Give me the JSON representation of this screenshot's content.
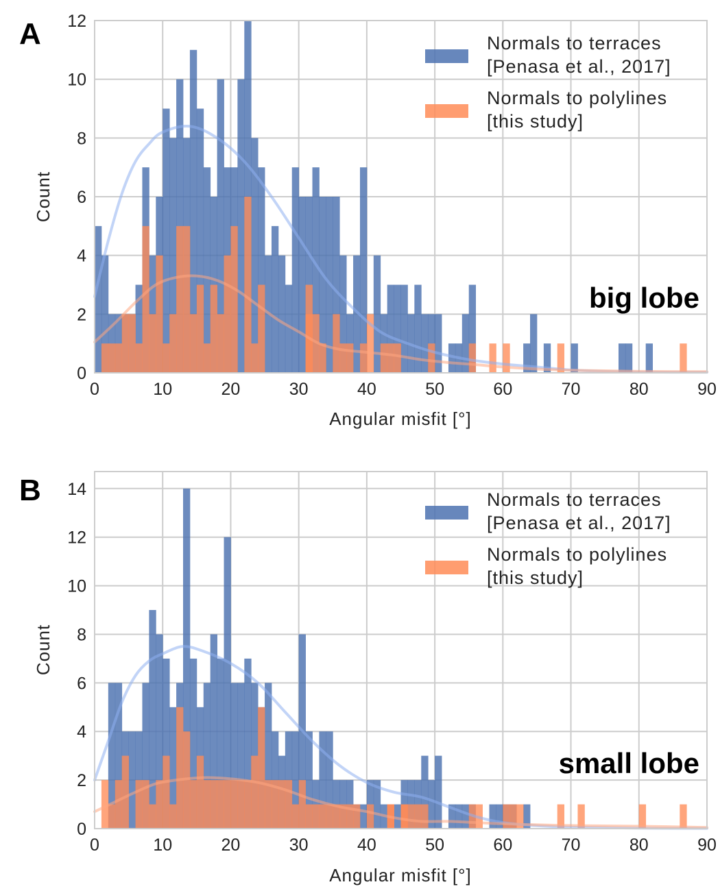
{
  "chart_data": [
    {
      "type": "bar",
      "panel": "A",
      "annotation": "big lobe",
      "xlabel": "Angular misfit [°]",
      "ylabel": "Count",
      "xlim": [
        0,
        90
      ],
      "ylim": [
        0,
        12
      ],
      "xticks": [
        0,
        10,
        20,
        30,
        40,
        50,
        60,
        70,
        80,
        90
      ],
      "yticks": [
        0,
        2,
        4,
        6,
        8,
        10,
        12
      ],
      "bin_width": 1,
      "grid": true,
      "legend_position": "top-right",
      "series": [
        {
          "name": "Normals to terraces [Penasa et al., 2017]",
          "legend_lines": [
            "Normals to terraces",
            "[Penasa et al., 2017]"
          ],
          "color": "#4c72b0",
          "kde_color": "#8fb0f0",
          "counts": [
            5,
            4,
            2,
            2,
            2,
            2,
            3,
            7,
            4,
            6,
            9,
            8,
            10,
            8,
            11,
            9,
            7,
            6,
            10,
            7,
            7,
            10,
            12,
            8,
            7,
            4,
            5,
            4,
            3,
            7,
            6,
            6,
            7,
            6,
            6,
            6,
            4,
            2,
            4,
            7,
            0,
            4,
            2,
            3,
            3,
            3,
            2,
            3,
            2,
            2,
            2,
            0,
            1,
            1,
            2,
            3,
            0,
            0,
            0,
            0,
            0,
            0,
            0,
            1,
            2,
            0,
            1,
            0,
            0,
            0,
            1,
            0,
            0,
            0,
            0,
            0,
            0,
            1,
            1,
            0,
            0,
            1,
            0,
            0,
            0,
            0,
            0,
            0,
            0,
            0
          ],
          "kde_points": [
            [
              0,
              2.6
            ],
            [
              2,
              4.5
            ],
            [
              4,
              6.1
            ],
            [
              6,
              7.2
            ],
            [
              8,
              7.8
            ],
            [
              10,
              8.2
            ],
            [
              14,
              8.4
            ],
            [
              18,
              8.0
            ],
            [
              22,
              7.2
            ],
            [
              26,
              6.0
            ],
            [
              30,
              4.6
            ],
            [
              34,
              3.2
            ],
            [
              38,
              2.2
            ],
            [
              42,
              1.4
            ],
            [
              46,
              1.0
            ],
            [
              50,
              0.7
            ],
            [
              55,
              0.45
            ],
            [
              60,
              0.3
            ],
            [
              65,
              0.2
            ],
            [
              70,
              0.1
            ],
            [
              75,
              0.05
            ],
            [
              80,
              0.03
            ],
            [
              85,
              0.02
            ],
            [
              90,
              0.02
            ]
          ]
        },
        {
          "name": "Normals to polylines [this study]",
          "legend_lines": [
            "Normals to polylines",
            "[this study]"
          ],
          "color": "#ff8c57",
          "kde_color": "#ffa882",
          "counts": [
            0,
            1,
            1,
            1,
            2,
            2,
            1,
            5,
            2,
            4,
            1,
            2,
            5,
            5,
            2,
            3,
            1,
            3,
            2,
            4,
            5,
            0,
            6,
            1,
            3,
            0,
            0,
            0,
            0,
            0,
            0,
            3,
            2,
            0,
            0,
            0,
            0,
            0,
            0,
            0,
            0,
            0,
            0,
            0,
            0,
            0,
            0,
            0,
            0,
            0,
            0,
            0,
            0,
            0,
            0,
            0,
            0,
            0,
            0,
            0,
            0,
            0,
            0,
            0,
            0,
            0,
            0,
            0,
            0,
            0,
            0,
            0,
            0,
            0,
            0,
            0,
            0,
            0,
            0,
            0,
            0,
            0,
            0,
            0,
            0,
            0,
            0,
            0,
            0,
            0
          ],
          "extra_bars": [
            [
              31,
              2
            ],
            [
              33,
              1
            ],
            [
              35,
              2
            ],
            [
              36,
              1
            ],
            [
              37,
              1
            ],
            [
              39,
              1
            ],
            [
              40,
              2
            ],
            [
              42,
              1
            ],
            [
              43,
              1
            ],
            [
              44,
              1
            ],
            [
              49,
              1
            ],
            [
              55,
              1
            ],
            [
              58,
              1
            ],
            [
              60,
              1
            ],
            [
              68,
              1
            ],
            [
              86,
              1
            ]
          ],
          "kde_points": [
            [
              0,
              1.05
            ],
            [
              3,
              1.7
            ],
            [
              6,
              2.4
            ],
            [
              9,
              3.0
            ],
            [
              12,
              3.25
            ],
            [
              15,
              3.3
            ],
            [
              18,
              3.15
            ],
            [
              21,
              2.8
            ],
            [
              24,
              2.3
            ],
            [
              27,
              1.8
            ],
            [
              30,
              1.4
            ],
            [
              33,
              1.0
            ],
            [
              36,
              0.8
            ],
            [
              40,
              0.7
            ],
            [
              44,
              0.6
            ],
            [
              48,
              0.45
            ],
            [
              52,
              0.35
            ],
            [
              56,
              0.28
            ],
            [
              60,
              0.2
            ],
            [
              66,
              0.12
            ],
            [
              72,
              0.08
            ],
            [
              80,
              0.05
            ],
            [
              90,
              0.04
            ]
          ]
        }
      ]
    },
    {
      "type": "bar",
      "panel": "B",
      "annotation": "small lobe",
      "xlabel": "Angular misfit [°]",
      "ylabel": "Count",
      "xlim": [
        0,
        90
      ],
      "ylim": [
        0,
        14.7
      ],
      "xticks": [
        0,
        10,
        20,
        30,
        40,
        50,
        60,
        70,
        80,
        90
      ],
      "yticks": [
        0,
        2,
        4,
        6,
        8,
        10,
        12,
        14
      ],
      "bin_width": 1,
      "grid": true,
      "legend_position": "top-right",
      "series": [
        {
          "name": "Normals to terraces [Penasa et al., 2017]",
          "legend_lines": [
            "Normals to terraces",
            "[Penasa et al., 2017]"
          ],
          "color": "#4c72b0",
          "kde_color": "#8fb0f0",
          "counts": [
            0,
            0,
            6,
            6,
            4,
            4,
            4,
            6,
            9,
            8,
            7,
            5,
            6,
            14,
            7,
            5,
            6,
            8,
            7,
            12,
            6,
            6,
            7,
            6,
            5,
            6,
            4,
            3,
            4,
            4,
            8,
            4,
            2,
            4,
            4,
            2,
            2,
            2,
            1,
            1,
            2,
            2,
            1,
            1,
            1,
            2,
            2,
            2,
            3,
            2,
            3,
            0,
            1,
            1,
            1,
            1,
            0,
            0,
            1,
            1,
            1,
            1,
            0,
            1,
            0,
            0,
            0,
            0,
            0,
            0,
            0,
            0,
            0,
            0,
            0,
            0,
            0,
            0,
            0,
            0,
            0,
            0,
            0,
            0,
            0,
            0,
            0,
            0,
            0,
            0
          ],
          "kde_points": [
            [
              0,
              2.0
            ],
            [
              2,
              3.6
            ],
            [
              4,
              5.2
            ],
            [
              6,
              6.3
            ],
            [
              8,
              6.9
            ],
            [
              10,
              7.2
            ],
            [
              13,
              7.5
            ],
            [
              16,
              7.3
            ],
            [
              20,
              6.8
            ],
            [
              24,
              6.0
            ],
            [
              28,
              4.8
            ],
            [
              32,
              3.6
            ],
            [
              36,
              2.6
            ],
            [
              40,
              1.9
            ],
            [
              44,
              1.5
            ],
            [
              48,
              1.3
            ],
            [
              52,
              0.9
            ],
            [
              56,
              0.5
            ],
            [
              60,
              0.25
            ],
            [
              65,
              0.12
            ],
            [
              70,
              0.06
            ],
            [
              80,
              0.02
            ],
            [
              90,
              0.01
            ]
          ]
        },
        {
          "name": "Normals to polylines [this study]",
          "legend_lines": [
            "Normals to polylines",
            "[this study]"
          ],
          "color": "#ff8c57",
          "kde_color": "#ffa882",
          "counts": [
            0,
            2,
            1,
            2,
            3,
            0,
            2,
            2,
            1,
            2,
            3,
            1,
            5,
            4,
            2,
            3,
            2,
            2,
            2,
            2,
            2,
            2,
            2,
            3,
            5,
            2,
            2,
            2,
            2,
            1,
            2,
            1,
            1,
            1,
            1,
            1,
            1,
            1,
            1,
            0,
            1,
            0,
            0,
            1,
            0,
            1,
            1,
            1,
            1,
            0,
            0,
            0,
            0,
            0,
            0,
            0,
            0,
            0,
            0,
            0,
            0,
            0,
            0,
            0,
            0,
            0,
            0,
            0,
            0,
            0,
            0,
            0,
            0,
            0,
            0,
            0,
            0,
            0,
            0,
            0,
            0,
            0,
            0,
            0,
            0,
            0,
            0,
            0,
            0,
            0
          ],
          "extra_bars": [
            [
              43,
              1
            ],
            [
              45,
              1
            ],
            [
              55,
              1
            ],
            [
              56,
              1
            ],
            [
              60,
              1
            ],
            [
              61,
              1
            ],
            [
              62,
              1
            ],
            [
              68,
              1
            ],
            [
              71,
              1
            ],
            [
              80,
              1
            ],
            [
              86,
              1
            ]
          ],
          "kde_points": [
            [
              0,
              0.7
            ],
            [
              3,
              1.1
            ],
            [
              6,
              1.5
            ],
            [
              9,
              1.85
            ],
            [
              12,
              2.0
            ],
            [
              16,
              2.1
            ],
            [
              20,
              2.05
            ],
            [
              24,
              1.9
            ],
            [
              28,
              1.6
            ],
            [
              32,
              1.2
            ],
            [
              36,
              0.9
            ],
            [
              40,
              0.7
            ],
            [
              44,
              0.45
            ],
            [
              48,
              0.3
            ],
            [
              52,
              0.3
            ],
            [
              56,
              0.25
            ],
            [
              60,
              0.2
            ],
            [
              66,
              0.15
            ],
            [
              72,
              0.12
            ],
            [
              80,
              0.1
            ],
            [
              90,
              0.05
            ]
          ]
        }
      ]
    }
  ]
}
